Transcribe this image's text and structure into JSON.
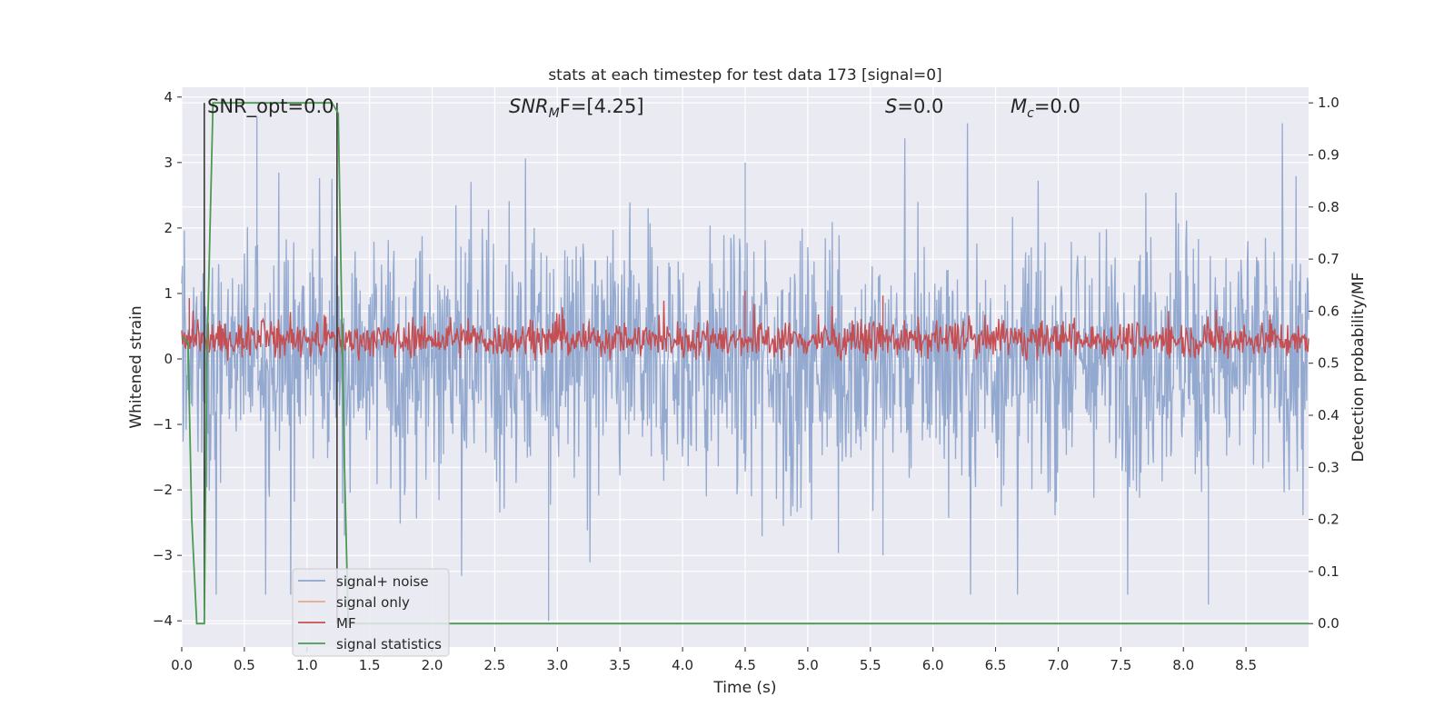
{
  "chart_data": {
    "type": "line",
    "title": "stats at each timestep for test data 173 [signal=0]",
    "xlabel": "Time (s)",
    "ylabel": "Whitened strain",
    "y2label": "Detection probability/MF",
    "xlim": [
      0.0,
      9.0
    ],
    "ylim": [
      -4.4,
      4.15
    ],
    "y2lim": [
      -0.045,
      1.03
    ],
    "xticks": [
      "0.0",
      "0.5",
      "1.0",
      "1.5",
      "2.0",
      "2.5",
      "3.0",
      "3.5",
      "4.0",
      "4.5",
      "5.0",
      "5.5",
      "6.0",
      "6.5",
      "7.0",
      "7.5",
      "8.0",
      "8.5"
    ],
    "yticks": [
      "4",
      "3",
      "2",
      "1",
      "0",
      "−1",
      "−2",
      "−3",
      "−4"
    ],
    "y2ticks": [
      "1.0",
      "0.9",
      "0.8",
      "0.7",
      "0.6",
      "0.5",
      "0.4",
      "0.3",
      "0.2",
      "0.1",
      "0.0"
    ],
    "grid": true,
    "legend_position": "lower-left",
    "annotations": {
      "snr_opt": "SNR_opt=0.0",
      "snr_mf_main": "SNR",
      "snr_mf_sub": "M",
      "snr_mf_rest": "F=[4.25]",
      "s_main": "S",
      "s_rest": "=0.0",
      "mc_main": "M",
      "mc_sub": "c",
      "mc_rest": "=0.0"
    },
    "vlines_x": [
      0.18,
      1.24
    ],
    "series": [
      {
        "name": "signal+ noise",
        "color": "#8fa5cc",
        "axis": "left",
        "description_points": {
          "x": [
            0.0,
            0.6,
            1.3,
            2.93,
            4.5,
            5.6,
            8.2,
            9.0
          ],
          "y": [
            0.0,
            3.7,
            -2.7,
            -4.0,
            3.0,
            -3.0,
            -3.75,
            0.0
          ]
        }
      },
      {
        "name": "signal only",
        "color": "#e8a98a",
        "axis": "left",
        "values": []
      },
      {
        "name": "MF",
        "color": "#c44e52",
        "axis": "right",
        "baseline": 0.545,
        "peaks": {
          "x": [
            0.06,
            4.5,
            5.6
          ],
          "y": [
            0.625,
            0.64,
            0.63
          ]
        }
      },
      {
        "name": "signal statistics",
        "color": "#4c9a52",
        "axis": "right",
        "x": [
          0.0,
          0.05,
          0.08,
          0.12,
          0.18,
          0.2,
          0.25,
          1.2,
          1.25,
          1.3,
          1.33,
          9.0
        ],
        "y": [
          0.55,
          0.54,
          0.2,
          0.0,
          0.0,
          0.5,
          1.0,
          1.0,
          0.98,
          0.3,
          0.0,
          0.0
        ]
      }
    ]
  }
}
